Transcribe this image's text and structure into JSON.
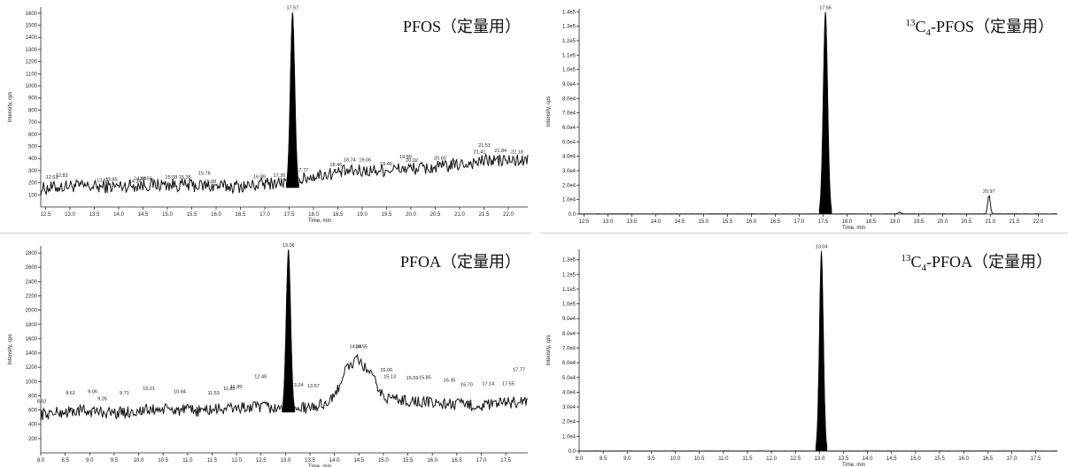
{
  "chart_data": [
    {
      "type": "line",
      "title_main": "PFOS",
      "title_paren": "（定量用）",
      "ylabel": "Intensity, cps",
      "xlabel": "Time, min",
      "xlim": [
        12.4,
        22.4
      ],
      "ylim": [
        0,
        1650
      ],
      "yticks": [
        "100",
        "200",
        "300",
        "400",
        "500",
        "600",
        "700",
        "800",
        "900",
        "1000",
        "1100",
        "1200",
        "1300",
        "1400",
        "1500",
        "1600"
      ],
      "xticks": [
        "12.5",
        "13.0",
        "13.5",
        "14.0",
        "14.5",
        "15.0",
        "15.5",
        "16.0",
        "16.5",
        "17.0",
        "17.5",
        "18.0",
        "18.5",
        "19.0",
        "19.5",
        "20.0",
        "20.5",
        "21.0",
        "21.5",
        "22.0"
      ],
      "baseline": {
        "x": [
          12.4,
          13.0,
          13.6,
          14.2,
          14.8,
          15.4,
          16.0,
          16.6,
          17.2,
          17.6,
          18.0,
          18.6,
          19.2,
          19.8,
          20.4,
          21.0,
          21.6,
          22.4
        ],
        "y": [
          150,
          175,
          165,
          175,
          185,
          180,
          170,
          170,
          200,
          210,
          255,
          290,
          300,
          315,
          320,
          350,
          385,
          380
        ],
        "noise": 55
      },
      "peak": {
        "center": 17.57,
        "height": 1610,
        "width": 0.1,
        "base": 160,
        "filled": true
      },
      "peak_labels": [
        {
          "x": 12.63,
          "y": 210,
          "text": "12.63"
        },
        {
          "x": 12.83,
          "y": 225,
          "text": "12.83"
        },
        {
          "x": 13.67,
          "y": 185,
          "text": "13.67"
        },
        {
          "x": 13.85,
          "y": 195,
          "text": "13.85"
        },
        {
          "x": 14.34,
          "y": 180,
          "text": "14.34"
        },
        {
          "x": 14.44,
          "y": 200,
          "text": "14.44"
        },
        {
          "x": 14.56,
          "y": 200,
          "text": "14.56"
        },
        {
          "x": 15.08,
          "y": 210,
          "text": "15.08"
        },
        {
          "x": 15.36,
          "y": 210,
          "text": "15.36"
        },
        {
          "x": 15.76,
          "y": 245,
          "text": "15.76"
        },
        {
          "x": 15.88,
          "y": 175,
          "text": "15.88"
        },
        {
          "x": 16.89,
          "y": 215,
          "text": "16.89"
        },
        {
          "x": 17.3,
          "y": 225,
          "text": "17.30"
        },
        {
          "x": 17.77,
          "y": 270,
          "text": "17.77"
        },
        {
          "x": 18.46,
          "y": 315,
          "text": "18.46"
        },
        {
          "x": 18.74,
          "y": 355,
          "text": "18.74"
        },
        {
          "x": 19.06,
          "y": 355,
          "text": "19.06"
        },
        {
          "x": 19.49,
          "y": 320,
          "text": "19.49"
        },
        {
          "x": 19.89,
          "y": 380,
          "text": "19.89"
        },
        {
          "x": 20.02,
          "y": 350,
          "text": "20.02"
        },
        {
          "x": 20.6,
          "y": 370,
          "text": "20.60"
        },
        {
          "x": 21.41,
          "y": 420,
          "text": "21.41"
        },
        {
          "x": 21.51,
          "y": 475,
          "text": "21.51"
        },
        {
          "x": 21.84,
          "y": 430,
          "text": "21.84"
        },
        {
          "x": 22.18,
          "y": 420,
          "text": "22.18"
        },
        {
          "x": 17.57,
          "y": 1610,
          "text": "17.57"
        }
      ]
    },
    {
      "type": "line",
      "title_sup": "13",
      "title_c": "C",
      "title_sub": "4",
      "title_main": "-PFOS",
      "title_paren": "（定量用）",
      "ylabel": "Intensity, cps",
      "xlabel": "Time, min",
      "xlim": [
        12.4,
        22.4
      ],
      "ylim": [
        0,
        1.42
      ],
      "yticks": [
        "0.0",
        "1.0e4",
        "2.0e4",
        "3.0e4",
        "4.0e4",
        "5.0e4",
        "6.0e4",
        "7.0e4",
        "8.0e4",
        "9.0e4",
        "1.0e5",
        "1.1e5",
        "1.2e5",
        "1.3e5",
        "1.4e5"
      ],
      "xticks": [
        "12.5",
        "13.0",
        "13.5",
        "14.0",
        "14.5",
        "15.0",
        "15.5",
        "16.0",
        "16.5",
        "17.0",
        "17.5",
        "18.0",
        "18.5",
        "19.0",
        "19.5",
        "20.0",
        "20.5",
        "21.0",
        "21.5",
        "22.0"
      ],
      "baseline": {
        "x": [
          12.4,
          22.4
        ],
        "y": [
          0.0,
          0.0
        ],
        "noise": 0.002
      },
      "peak": {
        "center": 17.55,
        "height": 1.4,
        "width": 0.1,
        "base": 0.0,
        "filled": true
      },
      "minor_peaks": [
        {
          "center": 19.1,
          "height": 0.012,
          "width": 0.07
        },
        {
          "center": 20.97,
          "height": 0.13,
          "width": 0.06
        }
      ],
      "peak_labels": [
        {
          "x": 17.55,
          "y": 1.4,
          "text": "17.55"
        },
        {
          "x": 20.97,
          "y": 0.13,
          "text": "20.97"
        }
      ]
    },
    {
      "type": "line",
      "title_main": "PFOA",
      "title_paren": "（定量用）",
      "ylabel": "Intensity, cps",
      "xlabel": "Time, min",
      "xlim": [
        8.0,
        17.95
      ],
      "ylim": [
        0,
        2900
      ],
      "yticks": [
        "200",
        "400",
        "600",
        "800",
        "1000",
        "1200",
        "1400",
        "1600",
        "1800",
        "2000",
        "2200",
        "2400",
        "2600",
        "2800"
      ],
      "xticks": [
        "8.0",
        "8.5",
        "9.0",
        "9.5",
        "10.0",
        "10.5",
        "11.0",
        "11.5",
        "12.0",
        "12.5",
        "13.0",
        "13.5",
        "14.0",
        "14.5",
        "15.0",
        "15.5",
        "16.0",
        "16.5",
        "17.0",
        "17.5"
      ],
      "baseline": {
        "x": [
          8.0,
          8.8,
          9.6,
          10.4,
          11.2,
          12.0,
          12.6,
          13.0,
          13.6,
          14.0,
          14.2,
          14.45,
          14.7,
          15.0,
          15.5,
          16.0,
          16.5,
          17.0,
          17.5,
          17.95
        ],
        "y": [
          540,
          590,
          560,
          610,
          590,
          630,
          640,
          600,
          640,
          760,
          1150,
          1300,
          1150,
          780,
          730,
          700,
          680,
          660,
          700,
          730
        ],
        "noise": 85
      },
      "peak": {
        "center": 13.06,
        "height": 2850,
        "width": 0.1,
        "base": 570,
        "filled": true
      },
      "peak_labels": [
        {
          "x": 8.02,
          "y": 660,
          "text": "8.02"
        },
        {
          "x": 8.61,
          "y": 780,
          "text": "8.61"
        },
        {
          "x": 9.06,
          "y": 800,
          "text": "9.06"
        },
        {
          "x": 9.26,
          "y": 700,
          "text": "9.26"
        },
        {
          "x": 9.71,
          "y": 780,
          "text": "9.71"
        },
        {
          "x": 10.21,
          "y": 840,
          "text": "10.21"
        },
        {
          "x": 10.84,
          "y": 800,
          "text": "10.84"
        },
        {
          "x": 11.53,
          "y": 780,
          "text": "11.53"
        },
        {
          "x": 11.85,
          "y": 840,
          "text": "11.85"
        },
        {
          "x": 11.99,
          "y": 870,
          "text": "11.99"
        },
        {
          "x": 12.49,
          "y": 1010,
          "text": "12.49"
        },
        {
          "x": 13.24,
          "y": 890,
          "text": "13.24"
        },
        {
          "x": 13.57,
          "y": 880,
          "text": "13.57"
        },
        {
          "x": 14.43,
          "y": 1430,
          "text": "14.43"
        },
        {
          "x": 14.55,
          "y": 1430,
          "text": "14.55"
        },
        {
          "x": 15.06,
          "y": 1100,
          "text": "15.06"
        },
        {
          "x": 15.13,
          "y": 1010,
          "text": "15.13"
        },
        {
          "x": 15.59,
          "y": 990,
          "text": "15.59"
        },
        {
          "x": 15.85,
          "y": 1000,
          "text": "15.85"
        },
        {
          "x": 16.35,
          "y": 960,
          "text": "16.35"
        },
        {
          "x": 16.7,
          "y": 900,
          "text": "16.70"
        },
        {
          "x": 17.14,
          "y": 910,
          "text": "17.14"
        },
        {
          "x": 17.55,
          "y": 910,
          "text": "17.55"
        },
        {
          "x": 17.77,
          "y": 1110,
          "text": "17.77"
        },
        {
          "x": 13.06,
          "y": 2850,
          "text": "13.06"
        }
      ]
    },
    {
      "type": "line",
      "title_sup": "13",
      "title_c": "C",
      "title_sub": "4",
      "title_main": "-PFOA",
      "title_paren": "（定量用）",
      "ylabel": "Intensity, cps",
      "xlabel": "Time, min",
      "xlim": [
        8.0,
        17.95
      ],
      "ylim": [
        0,
        1.37
      ],
      "yticks": [
        "0.0",
        "1.0e4",
        "2.0e4",
        "3.0e4",
        "4.0e4",
        "5.0e4",
        "6.0e4",
        "7.0e4",
        "8.0e4",
        "9.0e4",
        "1.0e5",
        "1.1e5",
        "1.2e5",
        "1.3e5"
      ],
      "xticks": [
        "8.0",
        "8.5",
        "9.0",
        "9.5",
        "10.0",
        "10.5",
        "11.0",
        "11.5",
        "12.0",
        "12.5",
        "13.0",
        "13.5",
        "14.0",
        "14.5",
        "15.0",
        "15.5",
        "16.0",
        "16.5",
        "17.0",
        "17.5"
      ],
      "baseline": {
        "x": [
          8.0,
          17.95
        ],
        "y": [
          0.0,
          0.0
        ],
        "noise": 0.001
      },
      "peak": {
        "center": 13.04,
        "height": 1.36,
        "width": 0.09,
        "base": 0.0,
        "filled": true
      },
      "peak_labels": [
        {
          "x": 13.04,
          "y": 1.36,
          "text": "13.04"
        }
      ]
    }
  ]
}
